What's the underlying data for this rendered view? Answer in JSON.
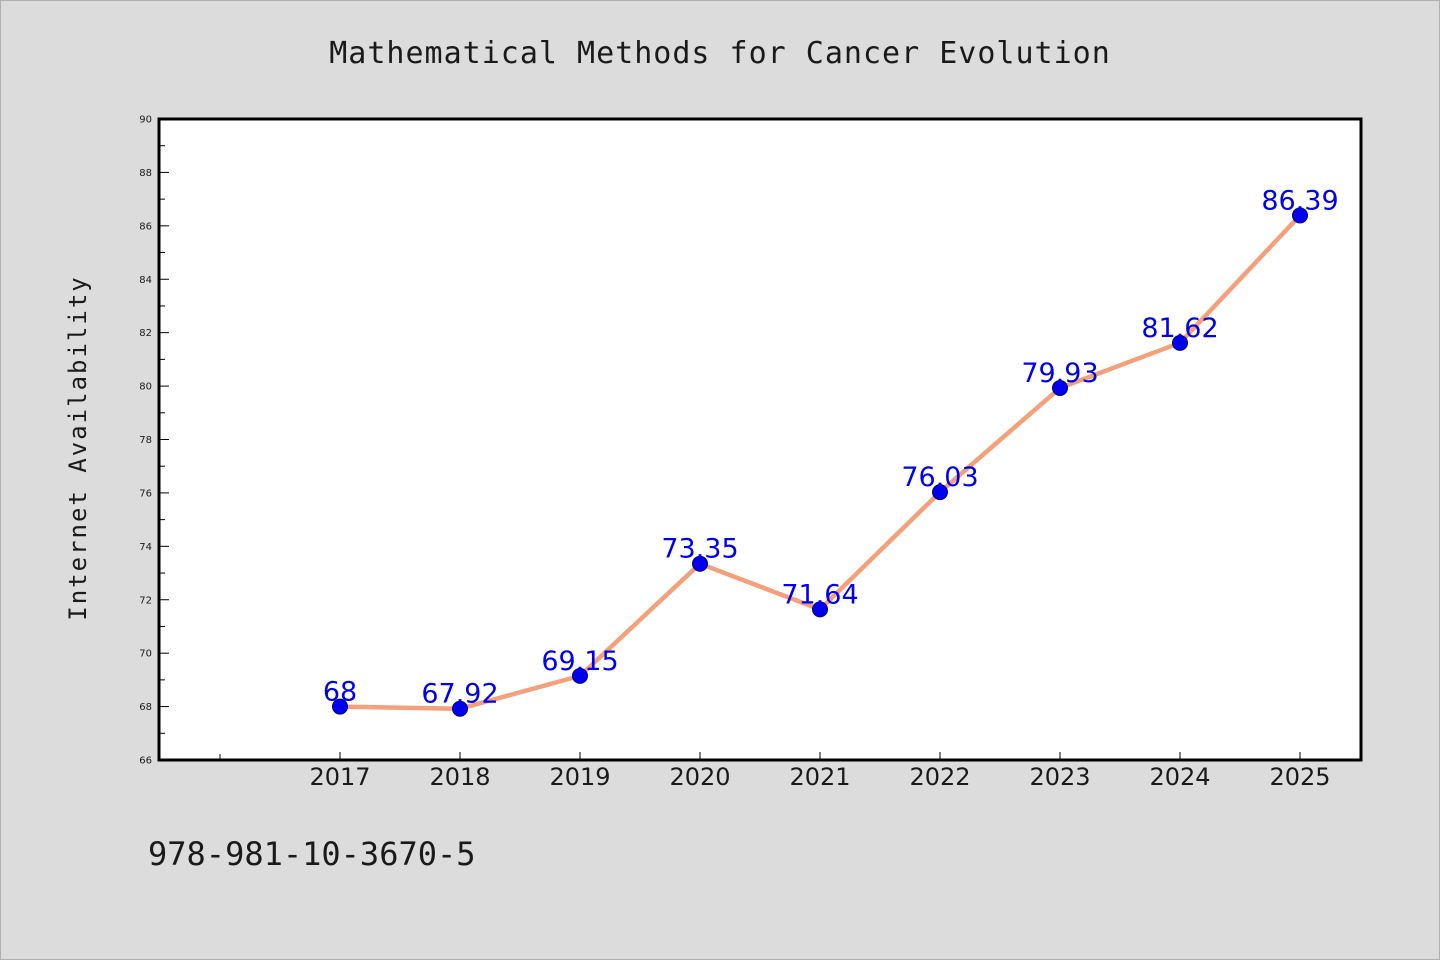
{
  "chart_data": {
    "type": "line",
    "title": "Mathematical Methods for Cancer Evolution",
    "xlabel": "",
    "ylabel": "Internet Availability",
    "categories": [
      "2017",
      "2018",
      "2019",
      "2020",
      "2021",
      "2022",
      "2023",
      "2024",
      "2025"
    ],
    "series": [
      {
        "values": [
          68,
          67.92,
          69.15,
          73.35,
          71.64,
          76.03,
          79.93,
          81.62,
          86.39
        ],
        "labels": [
          "68",
          "67.92",
          "69.15",
          "73.35",
          "71.64",
          "76.03",
          "79.93",
          "81.62",
          "86.39"
        ],
        "line_color": "#f4a07a",
        "marker_color": "#0000ee"
      }
    ],
    "ylim": [
      66,
      90
    ],
    "yticks": [
      "66",
      "68",
      "70",
      "72",
      "74",
      "76",
      "78",
      "80",
      "82",
      "84",
      "86",
      "88",
      "90"
    ],
    "grid": false,
    "legend": "none"
  },
  "footer": {
    "isbn": "978-981-10-3670-5"
  },
  "colors": {
    "background": "#dcdcdc",
    "plot_background": "#ffffff",
    "line": "#f4a07a",
    "markers": "#0000ee",
    "data_labels": "#0000ee"
  }
}
